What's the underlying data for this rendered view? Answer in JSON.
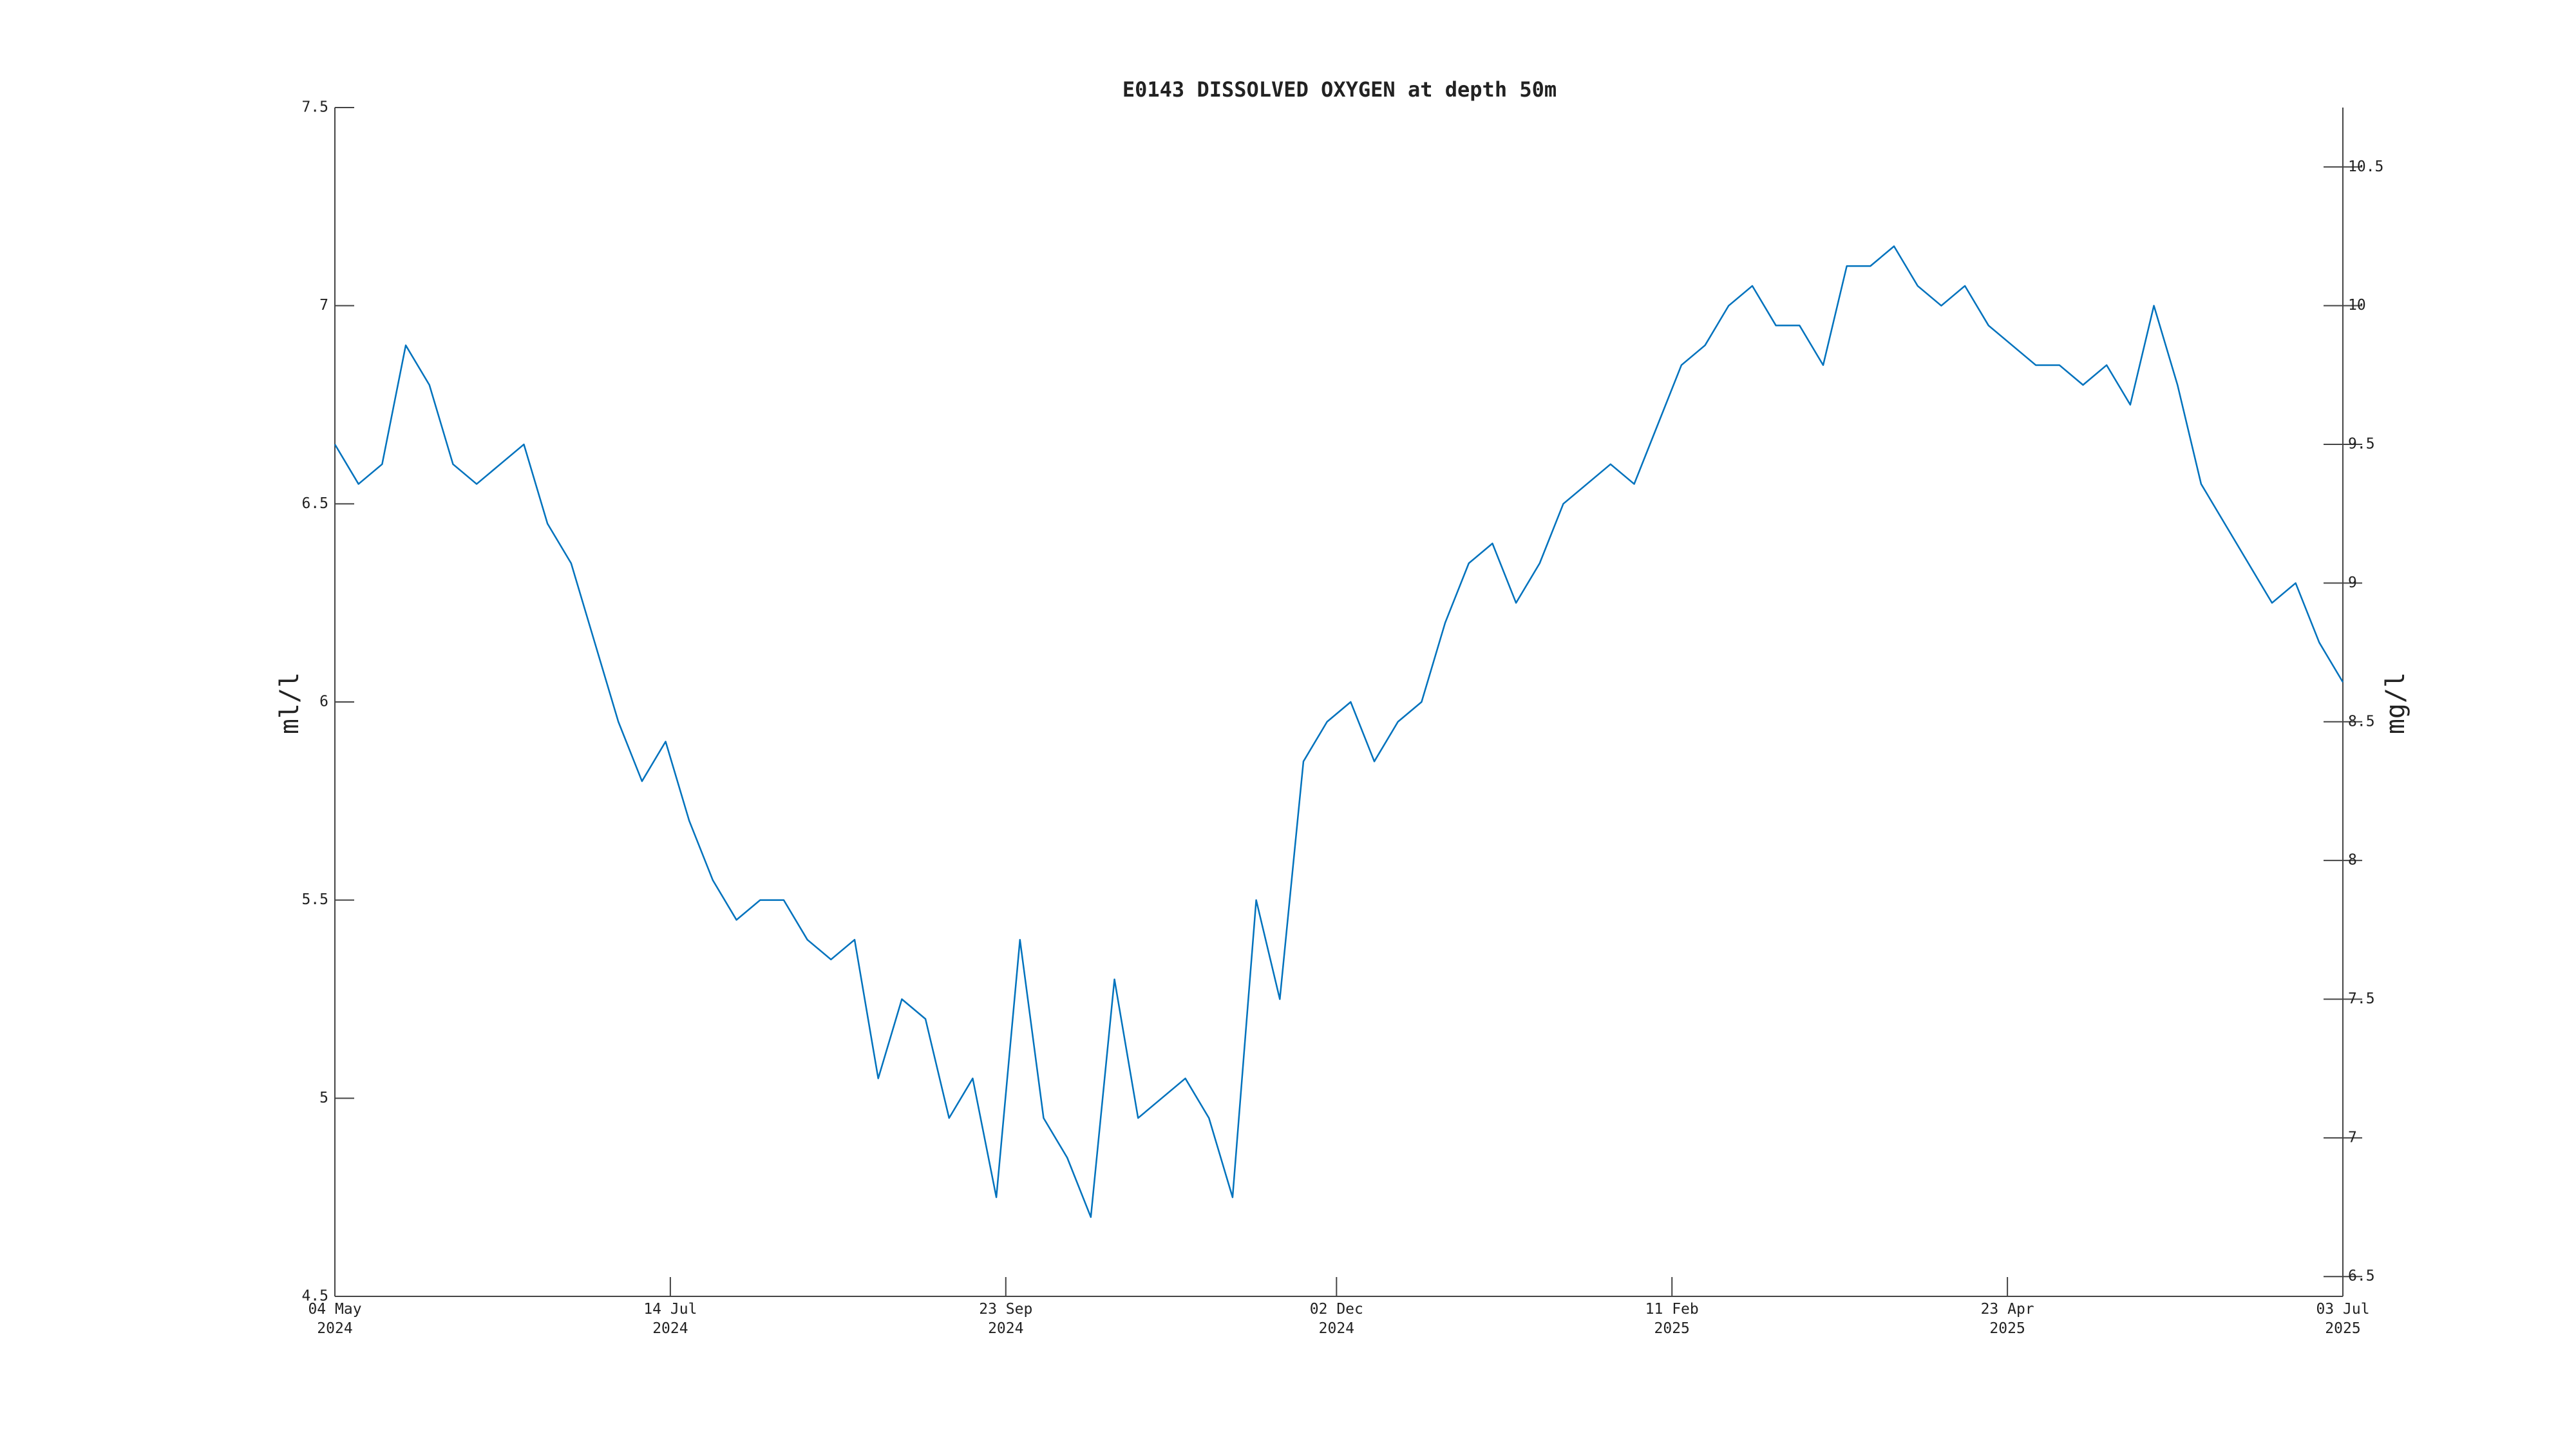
{
  "chart_data": {
    "type": "line",
    "title": "E0143 DISSOLVED OXYGEN at depth 50m",
    "y_label": "ml/l",
    "y2_label": "mg/l",
    "x": [
      "2024-05-04",
      "2024-05-09",
      "2024-05-14",
      "2024-05-19",
      "2024-05-24",
      "2024-05-29",
      "2024-06-03",
      "2024-06-08",
      "2024-06-13",
      "2024-06-18",
      "2024-06-23",
      "2024-06-28",
      "2024-07-03",
      "2024-07-08",
      "2024-07-13",
      "2024-07-18",
      "2024-07-23",
      "2024-07-28",
      "2024-08-02",
      "2024-08-07",
      "2024-08-12",
      "2024-08-17",
      "2024-08-22",
      "2024-08-27",
      "2024-09-01",
      "2024-09-06",
      "2024-09-11",
      "2024-09-16",
      "2024-09-21",
      "2024-09-26",
      "2024-10-01",
      "2024-10-06",
      "2024-10-11",
      "2024-10-16",
      "2024-10-21",
      "2024-10-26",
      "2024-10-31",
      "2024-11-05",
      "2024-11-10",
      "2024-11-15",
      "2024-11-20",
      "2024-11-25",
      "2024-11-30",
      "2024-12-05",
      "2024-12-10",
      "2024-12-15",
      "2024-12-20",
      "2024-12-25",
      "2024-12-30",
      "2025-01-04",
      "2025-01-09",
      "2025-01-14",
      "2025-01-19",
      "2025-01-24",
      "2025-01-29",
      "2025-02-03",
      "2025-02-08",
      "2025-02-13",
      "2025-02-18",
      "2025-02-23",
      "2025-02-28",
      "2025-03-05",
      "2025-03-10",
      "2025-03-15",
      "2025-03-20",
      "2025-03-25",
      "2025-03-30",
      "2025-04-04",
      "2025-04-09",
      "2025-04-14",
      "2025-04-19",
      "2025-04-24",
      "2025-04-29",
      "2025-05-04",
      "2025-05-09",
      "2025-05-14",
      "2025-05-19",
      "2025-05-24",
      "2025-05-29",
      "2025-06-03",
      "2025-06-08",
      "2025-06-13",
      "2025-06-18",
      "2025-06-23",
      "2025-06-28",
      "2025-07-03"
    ],
    "series": [
      {
        "name": "E0143",
        "color": "#0072bd",
        "values": [
          6.65,
          6.55,
          6.6,
          6.9,
          6.8,
          6.6,
          6.55,
          6.6,
          6.65,
          6.45,
          6.35,
          6.15,
          5.95,
          5.8,
          5.9,
          5.7,
          5.55,
          5.45,
          5.5,
          5.5,
          5.4,
          5.35,
          5.4,
          5.05,
          5.25,
          5.2,
          4.95,
          5.05,
          4.75,
          5.4,
          4.95,
          4.85,
          4.7,
          5.3,
          4.95,
          5.0,
          5.05,
          4.95,
          4.75,
          5.5,
          5.25,
          5.85,
          5.95,
          6.0,
          5.85,
          5.95,
          6.0,
          6.2,
          6.35,
          6.4,
          6.25,
          6.35,
          6.5,
          6.55,
          6.6,
          6.55,
          6.7,
          6.85,
          6.9,
          7.0,
          7.05,
          6.95,
          6.95,
          6.85,
          7.1,
          7.1,
          7.15,
          7.05,
          7.0,
          7.05,
          6.95,
          6.9,
          6.85,
          6.85,
          6.8,
          6.85,
          6.75,
          7.0,
          6.8,
          6.55,
          6.45,
          6.35,
          6.25,
          6.3,
          6.15,
          6.05
        ]
      }
    ],
    "xlim": [
      "2024-05-04",
      "2025-07-03"
    ],
    "xticks": [
      {
        "value": "2024-05-04",
        "label": "04 May\n2024"
      },
      {
        "value": "2024-07-14",
        "label": "14 Jul\n2024"
      },
      {
        "value": "2024-09-23",
        "label": "23 Sep\n2024"
      },
      {
        "value": "2024-12-02",
        "label": "02 Dec\n2024"
      },
      {
        "value": "2025-02-11",
        "label": "11 Feb\n2025"
      },
      {
        "value": "2025-04-23",
        "label": "23 Apr\n2025"
      },
      {
        "value": "2025-07-03",
        "label": "03 Jul\n2025"
      }
    ],
    "ylim": [
      4.5,
      7.5
    ],
    "yticks": [
      4.5,
      5,
      5.5,
      6,
      6.5,
      7,
      7.5
    ],
    "y2lim": [
      6.4286,
      10.7143
    ],
    "y2ticks": [
      6.5,
      7,
      7.5,
      8,
      8.5,
      9,
      9.5,
      10,
      10.5
    ]
  }
}
